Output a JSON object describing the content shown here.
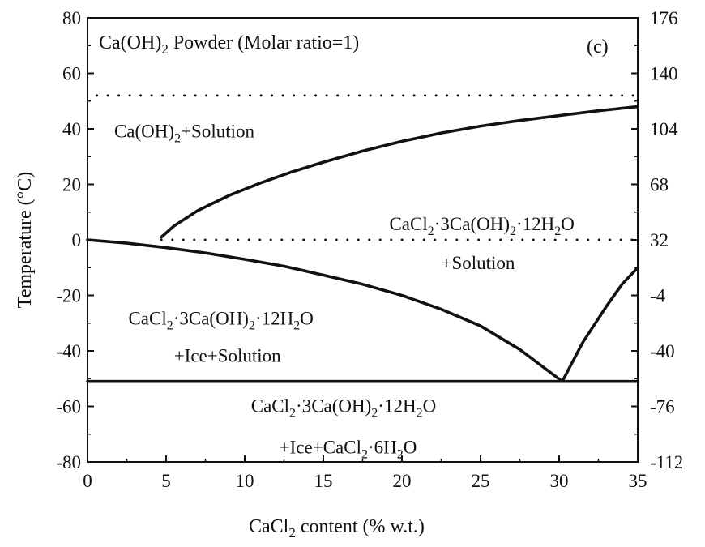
{
  "chart_data": {
    "type": "line",
    "panel_label": "(c)",
    "title": {
      "pre": "Ca(OH)",
      "sub": "2",
      "post": " Powder (Molar ratio=1)"
    },
    "xlabel": {
      "pre": "CaCl",
      "sub": "2",
      "post": " content (% w.t.)"
    },
    "ylabel": "Temperature (°C)",
    "xlim": [
      0,
      35
    ],
    "ylim": [
      -80,
      80
    ],
    "x_ticks": [
      0,
      5,
      10,
      15,
      20,
      25,
      30,
      35
    ],
    "y_ticks": [
      -80,
      -60,
      -40,
      -20,
      0,
      20,
      40,
      60,
      80
    ],
    "y2_ticks": [
      -112,
      -76,
      -40,
      -4,
      32,
      68,
      104,
      140,
      176
    ],
    "grid": false,
    "legend": "none",
    "series": [
      {
        "style": "solid",
        "x": [
          4.7,
          5.5,
          7,
          9,
          11,
          13,
          15,
          17.5,
          20,
          22.5,
          25,
          27.5,
          30,
          32.5,
          35
        ],
        "y": [
          1,
          5,
          10.5,
          16,
          20.5,
          24.5,
          28,
          32,
          35.5,
          38.5,
          41,
          43,
          44.8,
          46.5,
          48
        ]
      },
      {
        "style": "solid",
        "x": [
          0,
          2.5,
          5,
          7.5,
          10,
          12.5,
          15,
          17.5,
          20,
          22.5,
          25,
          27.5,
          30.2
        ],
        "y": [
          0,
          -1.2,
          -2.8,
          -4.7,
          -7,
          -9.5,
          -12.7,
          -16,
          -20,
          -25,
          -31,
          -39.5,
          -51
        ]
      },
      {
        "style": "solid",
        "x": [
          30.2,
          31.5,
          33,
          34,
          35
        ],
        "y": [
          -51,
          -37,
          -24,
          -16,
          -10
        ]
      },
      {
        "style": "solid",
        "x": [
          0,
          35
        ],
        "y": [
          -51,
          -51
        ]
      },
      {
        "style": "dotted",
        "x": [
          0.6,
          35
        ],
        "y": [
          52,
          52
        ]
      },
      {
        "style": "dotted",
        "x": [
          4.7,
          35
        ],
        "y": [
          0,
          0
        ]
      }
    ],
    "annotations": [
      {
        "x": 1.7,
        "y": 37,
        "parts": [
          {
            "t": "Ca(OH)"
          },
          {
            "t": "2",
            "sub": true
          },
          {
            "t": "+Solution"
          }
        ]
      },
      {
        "x": 19.2,
        "y": 3.5,
        "parts": [
          {
            "t": "CaCl"
          },
          {
            "t": "2",
            "sub": true
          },
          {
            "t": "·3Ca(OH)"
          },
          {
            "t": "2",
            "sub": true
          },
          {
            "t": "·12H"
          },
          {
            "t": "2",
            "sub": true
          },
          {
            "t": "O"
          }
        ]
      },
      {
        "x": 22.5,
        "y": -10.5,
        "parts": [
          {
            "t": "+Solution"
          }
        ]
      },
      {
        "x": 2.6,
        "y": -30.5,
        "parts": [
          {
            "t": "CaCl"
          },
          {
            "t": "2",
            "sub": true
          },
          {
            "t": "·3Ca(OH)"
          },
          {
            "t": "2",
            "sub": true
          },
          {
            "t": "·12H"
          },
          {
            "t": "2",
            "sub": true
          },
          {
            "t": "O"
          }
        ]
      },
      {
        "x": 5.5,
        "y": -44,
        "parts": [
          {
            "t": "+Ice+Solution"
          }
        ]
      },
      {
        "x": 10.4,
        "y": -62,
        "parts": [
          {
            "t": "CaCl"
          },
          {
            "t": "2",
            "sub": true
          },
          {
            "t": "·3Ca(OH)"
          },
          {
            "t": "2",
            "sub": true
          },
          {
            "t": "·12H"
          },
          {
            "t": "2",
            "sub": true
          },
          {
            "t": "O"
          }
        ]
      },
      {
        "x": 12.2,
        "y": -77,
        "parts": [
          {
            "t": "+Ice+CaCl"
          },
          {
            "t": "2",
            "sub": true
          },
          {
            "t": "·6H"
          },
          {
            "t": "2",
            "sub": true
          },
          {
            "t": "O"
          }
        ]
      }
    ]
  }
}
